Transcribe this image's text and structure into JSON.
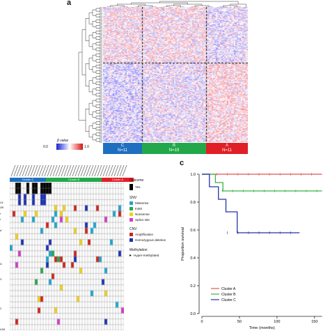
{
  "panel_a": {
    "letter": "a",
    "scale_label": "β value",
    "scale_min": "0.0",
    "scale_max": "1.0",
    "clusters": [
      {
        "name": "C",
        "n": "N=11",
        "color": "#1f6fc0"
      },
      {
        "name": "B",
        "n": "N=19",
        "color": "#22a84a"
      },
      {
        "name": "A",
        "n": "N=11",
        "color": "#e01f26"
      }
    ]
  },
  "panel_b": {
    "cluster_bar": [
      {
        "label": "Cluster C",
        "color": "#1f6fc0"
      },
      {
        "label": "Cluster B",
        "color": "#22a84a"
      },
      {
        "label": "Cluster A",
        "color": "#e01f26"
      }
    ],
    "row_labels": [
      "24",
      "2B",
      "r",
      "r",
      "d",
      "",
      "A",
      "3",
      "",
      "",
      "",
      "2",
      "IOB"
    ],
    "legend": {
      "outcome_title": "Outcome",
      "outcome_items": [
        {
          "label": "Yes",
          "color": "#000000"
        }
      ],
      "snv_title": "SNV",
      "snv_items": [
        {
          "label": "Missense",
          "color": "#1aa7d4"
        },
        {
          "label": "Indel",
          "color": "#2aa84a"
        },
        {
          "label": "Nonsense",
          "color": "#f2d21b"
        },
        {
          "label": "Splice site",
          "color": "#d43bc8"
        }
      ],
      "cnv_title": "CNV",
      "cnv_items": [
        {
          "label": "Amplification",
          "color": "#d0241c"
        },
        {
          "label": "Homozygous deletion",
          "color": "#1a2fb5"
        }
      ],
      "methylation_title": "Methylation",
      "methylation_items": [
        {
          "label": "Hyper-methylated",
          "symbol": "▸"
        }
      ]
    }
  },
  "panel_c": {
    "letter": "c",
    "ylabel": "Proportion survival",
    "xlabel": "Time (months)",
    "yticks": [
      "0.0",
      "0.2",
      "0.4",
      "0.6",
      "0.8",
      "1.0"
    ],
    "xticks": [
      "0",
      "50",
      "100",
      "150"
    ],
    "legend": [
      "Cluster A",
      "Cluster B",
      "Cluster C"
    ]
  },
  "chart_data": {
    "type": "line",
    "xlabel": "Time (months)",
    "ylabel": "Proportion survival",
    "xlim": [
      0,
      165
    ],
    "ylim": [
      0,
      1.0
    ],
    "series": [
      {
        "name": "Cluster A",
        "color": "#e05555",
        "steps": [
          [
            0,
            1.0
          ],
          [
            160,
            1.0
          ]
        ]
      },
      {
        "name": "Cluster B",
        "color": "#3fae49",
        "steps": [
          [
            0,
            1.0
          ],
          [
            18,
            1.0
          ],
          [
            18,
            0.94
          ],
          [
            28,
            0.94
          ],
          [
            28,
            0.88
          ],
          [
            160,
            0.88
          ]
        ]
      },
      {
        "name": "Cluster C",
        "color": "#2233aa",
        "steps": [
          [
            0,
            1.0
          ],
          [
            10,
            1.0
          ],
          [
            10,
            0.91
          ],
          [
            22,
            0.91
          ],
          [
            22,
            0.82
          ],
          [
            32,
            0.82
          ],
          [
            32,
            0.73
          ],
          [
            47,
            0.73
          ],
          [
            47,
            0.58
          ],
          [
            130,
            0.58
          ]
        ]
      }
    ]
  }
}
